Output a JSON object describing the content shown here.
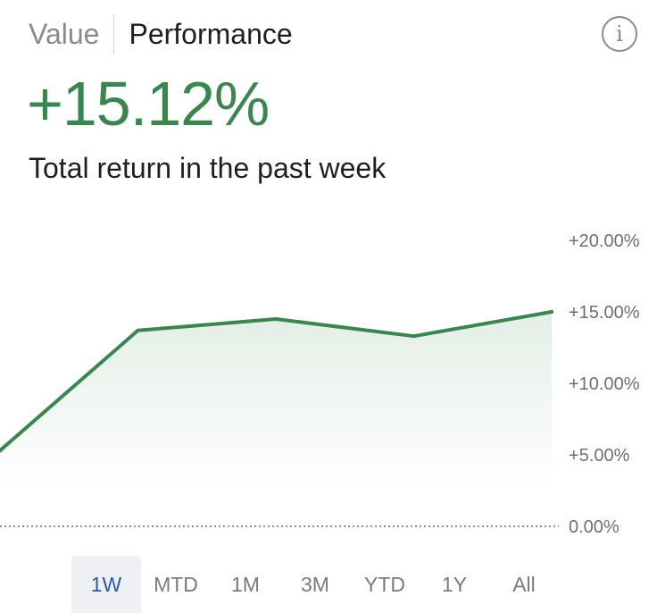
{
  "tabs": [
    {
      "label": "Value",
      "active": false
    },
    {
      "label": "Performance",
      "active": true
    }
  ],
  "info_icon": "info-icon",
  "summary": {
    "return_value": "+15.12%",
    "caption": "Total return in the past week"
  },
  "colors": {
    "positive": "#3a8550",
    "selected_range": "#2a5aa0",
    "muted": "#8a8a8a"
  },
  "ranges": [
    "1W",
    "MTD",
    "1M",
    "3M",
    "YTD",
    "1Y",
    "All"
  ],
  "selected_range": "1W",
  "chart_data": {
    "type": "area",
    "x": [
      0,
      1,
      2,
      3,
      4
    ],
    "series": [
      {
        "values": [
          5.3,
          13.7,
          14.5,
          13.3,
          15.0
        ]
      }
    ],
    "ylim": [
      0,
      20
    ],
    "yticks": [
      "+20.00%",
      "+15.00%",
      "+10.00%",
      "+5.00%",
      "0.00%"
    ],
    "y_axis_position": "right",
    "grid": false,
    "baseline": "dotted"
  }
}
